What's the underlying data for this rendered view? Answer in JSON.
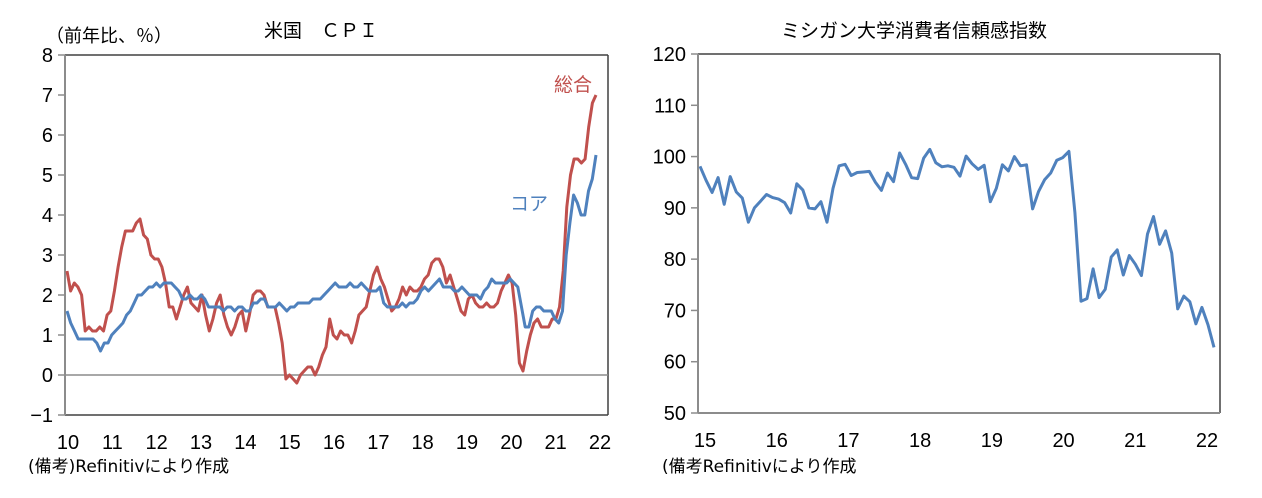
{
  "chart_data": [
    {
      "type": "line",
      "title": "米国　ＣＰＩ",
      "ylabel": "（前年比、％）",
      "xlabel": "",
      "note": "(備考)Refinitivにより作成",
      "ylim": [
        -1,
        8
      ],
      "yticks": [
        "8",
        "7",
        "6",
        "5",
        "4",
        "3",
        "2",
        "1",
        "0",
        "−1"
      ],
      "xticks": [
        "10",
        "11",
        "12",
        "13",
        "14",
        "15",
        "16",
        "17",
        "18",
        "19",
        "20",
        "21",
        "22"
      ],
      "x_start": 2010.0,
      "x_step_months": 1,
      "grid": false,
      "zero_line": true,
      "legend": [
        {
          "name": "総合",
          "color": "#c0504d"
        },
        {
          "name": "コア",
          "color": "#4f81bd"
        }
      ],
      "series": [
        {
          "name": "総合",
          "color": "#c0504d",
          "values": [
            2.6,
            2.1,
            2.3,
            2.2,
            2.0,
            1.1,
            1.2,
            1.1,
            1.1,
            1.2,
            1.1,
            1.5,
            1.6,
            2.1,
            2.7,
            3.2,
            3.6,
            3.6,
            3.6,
            3.8,
            3.9,
            3.5,
            3.4,
            3.0,
            2.9,
            2.9,
            2.7,
            2.3,
            1.7,
            1.7,
            1.4,
            1.7,
            2.0,
            2.2,
            1.8,
            1.7,
            1.6,
            2.0,
            1.5,
            1.1,
            1.4,
            1.8,
            2.0,
            1.5,
            1.2,
            1.0,
            1.2,
            1.5,
            1.6,
            1.1,
            1.5,
            2.0,
            2.1,
            2.1,
            2.0,
            1.7,
            1.7,
            1.7,
            1.3,
            0.8,
            -0.1,
            0.0,
            -0.1,
            -0.2,
            0.0,
            0.1,
            0.2,
            0.2,
            0.0,
            0.2,
            0.5,
            0.7,
            1.4,
            1.0,
            0.9,
            1.1,
            1.0,
            1.0,
            0.8,
            1.1,
            1.5,
            1.6,
            1.7,
            2.1,
            2.5,
            2.7,
            2.4,
            2.2,
            1.9,
            1.6,
            1.7,
            1.9,
            2.2,
            2.0,
            2.2,
            2.1,
            2.1,
            2.2,
            2.4,
            2.5,
            2.8,
            2.9,
            2.9,
            2.7,
            2.3,
            2.5,
            2.2,
            1.9,
            1.6,
            1.5,
            1.9,
            2.0,
            1.8,
            1.7,
            1.7,
            1.8,
            1.7,
            1.7,
            1.8,
            2.1,
            2.3,
            2.5,
            2.3,
            1.5,
            0.3,
            0.1,
            0.6,
            1.0,
            1.3,
            1.4,
            1.2,
            1.2,
            1.2,
            1.4,
            1.4,
            1.7,
            2.6,
            4.2,
            5.0,
            5.4,
            5.4,
            5.3,
            5.4,
            6.2,
            6.8,
            7.0
          ]
        },
        {
          "name": "コア",
          "color": "#4f81bd",
          "values": [
            1.6,
            1.3,
            1.1,
            0.9,
            0.9,
            0.9,
            0.9,
            0.9,
            0.8,
            0.6,
            0.8,
            0.8,
            1.0,
            1.1,
            1.2,
            1.3,
            1.5,
            1.6,
            1.8,
            2.0,
            2.0,
            2.1,
            2.2,
            2.2,
            2.3,
            2.2,
            2.3,
            2.3,
            2.3,
            2.2,
            2.1,
            1.9,
            1.9,
            2.0,
            1.9,
            1.9,
            2.0,
            1.9,
            1.7,
            1.7,
            1.7,
            1.7,
            1.6,
            1.7,
            1.7,
            1.6,
            1.7,
            1.7,
            1.6,
            1.6,
            1.8,
            1.8,
            1.9,
            1.9,
            1.7,
            1.7,
            1.7,
            1.8,
            1.7,
            1.6,
            1.7,
            1.7,
            1.8,
            1.8,
            1.8,
            1.8,
            1.9,
            1.9,
            1.9,
            2.0,
            2.1,
            2.2,
            2.3,
            2.2,
            2.2,
            2.2,
            2.3,
            2.2,
            2.2,
            2.3,
            2.2,
            2.1,
            2.1,
            2.1,
            2.2,
            1.8,
            1.7,
            1.7,
            1.7,
            1.7,
            1.8,
            1.7,
            1.8,
            1.8,
            1.9,
            2.1,
            2.2,
            2.1,
            2.2,
            2.3,
            2.4,
            2.2,
            2.2,
            2.2,
            2.1,
            2.1,
            2.2,
            2.1,
            2.0,
            2.0,
            2.0,
            1.9,
            2.1,
            2.2,
            2.4,
            2.3,
            2.3,
            2.3,
            2.3,
            2.4,
            2.3,
            2.2,
            1.7,
            1.2,
            1.2,
            1.6,
            1.7,
            1.7,
            1.6,
            1.6,
            1.6,
            1.4,
            1.3,
            1.6,
            3.0,
            3.8,
            4.5,
            4.3,
            4.0,
            4.0,
            4.6,
            4.9,
            5.5
          ]
        }
      ]
    },
    {
      "type": "line",
      "title": "ミシガン大学消費者信頼感指数",
      "xlabel": "",
      "ylabel": "",
      "note": "(備考Refinitivにより作成",
      "ylim": [
        50,
        120
      ],
      "yticks": [
        "120",
        "110",
        "100",
        "90",
        "80",
        "70",
        "60",
        "50"
      ],
      "xticks": [
        "15",
        "16",
        "17",
        "18",
        "19",
        "20",
        "21",
        "22"
      ],
      "x_start": 2015.0,
      "x_step_months": 1,
      "grid": false,
      "series": [
        {
          "name": "ミシガン大学消費者信頼感指数",
          "color": "#4f81bd",
          "values": [
            98.1,
            95.4,
            93.0,
            95.9,
            90.7,
            96.1,
            93.1,
            91.9,
            87.2,
            90.0,
            91.3,
            92.6,
            92.0,
            91.7,
            91.0,
            89.0,
            94.7,
            93.5,
            90.0,
            89.8,
            91.2,
            87.2,
            93.8,
            98.2,
            98.5,
            96.3,
            96.9,
            97.0,
            97.1,
            95.0,
            93.4,
            96.8,
            95.1,
            100.7,
            98.5,
            95.9,
            95.7,
            99.7,
            101.4,
            98.8,
            98.0,
            98.2,
            97.9,
            96.2,
            100.1,
            98.6,
            97.5,
            98.3,
            91.2,
            93.8,
            98.4,
            97.2,
            100.0,
            98.2,
            98.4,
            89.8,
            93.2,
            95.5,
            96.8,
            99.3,
            99.8,
            101.0,
            89.1,
            71.8,
            72.3,
            78.1,
            72.5,
            74.1,
            80.4,
            81.8,
            76.9,
            80.7,
            79.0,
            76.8,
            84.9,
            88.3,
            82.9,
            85.5,
            81.2,
            70.3,
            72.8,
            71.7,
            67.4,
            70.6,
            67.2,
            62.8
          ]
        }
      ]
    }
  ],
  "cpi": {
    "title": "米国　ＣＰＩ",
    "unit_label": "（前年比、％）",
    "label_total": "総合",
    "label_core": "コア",
    "note": "(備考)Refinitivにより作成"
  },
  "michigan": {
    "title": "ミシガン大学消費者信頼感指数",
    "note": "(備考Refinitivにより作成"
  }
}
